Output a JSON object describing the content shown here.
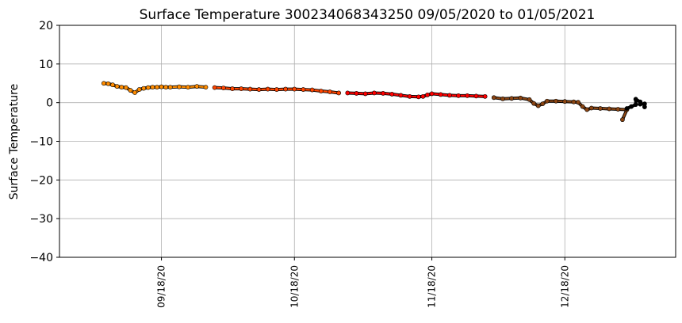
{
  "chart_data": {
    "type": "scatter",
    "title": "Surface Temperature 300234068343250  09/05/2020 to 01/05/2021",
    "xlabel": "",
    "ylabel": "Surface Temperature",
    "ylim": [
      -40,
      20
    ],
    "xlim": [
      "2020-08-26",
      "2021-01-12"
    ],
    "yticks": [
      20,
      10,
      0,
      -10,
      -20,
      -30,
      -40
    ],
    "ytick_labels": [
      "20",
      "10",
      "0",
      "−10",
      "−20",
      "−30",
      "−40"
    ],
    "xticks": [
      {
        "date": "2020-09-18",
        "label": "09/18/20"
      },
      {
        "date": "2020-10-18",
        "label": "10/18/20"
      },
      {
        "date": "2020-11-18",
        "label": "11/18/20"
      },
      {
        "date": "2020-12-18",
        "label": "12/18/20"
      }
    ],
    "grid": true,
    "series": [
      {
        "color": "#ff8c00",
        "points": [
          [
            "2020-09-05",
            5.0
          ],
          [
            "2020-09-06",
            4.9
          ],
          [
            "2020-09-07",
            4.6
          ],
          [
            "2020-09-08",
            4.2
          ],
          [
            "2020-09-09",
            4.0
          ],
          [
            "2020-09-10",
            3.9
          ],
          [
            "2020-09-11",
            3.2
          ],
          [
            "2020-09-12",
            2.6
          ],
          [
            "2020-09-13",
            3.4
          ],
          [
            "2020-09-14",
            3.7
          ],
          [
            "2020-09-15",
            3.9
          ],
          [
            "2020-09-16",
            4.0
          ],
          [
            "2020-09-17",
            4.0
          ],
          [
            "2020-09-18",
            4.1
          ],
          [
            "2020-09-19",
            4.0
          ],
          [
            "2020-09-20",
            4.0
          ],
          [
            "2020-09-22",
            4.1
          ],
          [
            "2020-09-24",
            4.0
          ],
          [
            "2020-09-26",
            4.2
          ],
          [
            "2020-09-28",
            4.0
          ]
        ]
      },
      {
        "color": "#ff4500",
        "points": [
          [
            "2020-09-30",
            3.9
          ],
          [
            "2020-10-02",
            3.8
          ],
          [
            "2020-10-04",
            3.6
          ],
          [
            "2020-10-06",
            3.6
          ],
          [
            "2020-10-08",
            3.5
          ],
          [
            "2020-10-10",
            3.4
          ],
          [
            "2020-10-12",
            3.5
          ],
          [
            "2020-10-14",
            3.4
          ],
          [
            "2020-10-16",
            3.5
          ],
          [
            "2020-10-18",
            3.5
          ],
          [
            "2020-10-20",
            3.4
          ],
          [
            "2020-10-22",
            3.3
          ],
          [
            "2020-10-24",
            3.0
          ],
          [
            "2020-10-26",
            2.8
          ],
          [
            "2020-10-28",
            2.5
          ]
        ]
      },
      {
        "color": "#ff0000",
        "points": [
          [
            "2020-10-30",
            2.5
          ],
          [
            "2020-11-01",
            2.4
          ],
          [
            "2020-11-03",
            2.3
          ],
          [
            "2020-11-05",
            2.5
          ],
          [
            "2020-11-07",
            2.4
          ],
          [
            "2020-11-09",
            2.2
          ],
          [
            "2020-11-11",
            1.9
          ],
          [
            "2020-11-13",
            1.6
          ],
          [
            "2020-11-15",
            1.5
          ],
          [
            "2020-11-16",
            1.6
          ],
          [
            "2020-11-17",
            2.0
          ],
          [
            "2020-11-18",
            2.3
          ],
          [
            "2020-11-20",
            2.1
          ],
          [
            "2020-11-22",
            1.9
          ],
          [
            "2020-11-24",
            1.8
          ],
          [
            "2020-11-26",
            1.8
          ],
          [
            "2020-11-28",
            1.7
          ],
          [
            "2020-11-30",
            1.6
          ]
        ]
      },
      {
        "color": "#8b4513",
        "points": [
          [
            "2020-12-02",
            1.3
          ],
          [
            "2020-12-04",
            1.0
          ],
          [
            "2020-12-06",
            1.1
          ],
          [
            "2020-12-08",
            1.2
          ],
          [
            "2020-12-10",
            0.8
          ],
          [
            "2020-12-11",
            -0.2
          ],
          [
            "2020-12-12",
            -0.8
          ],
          [
            "2020-12-13",
            -0.3
          ],
          [
            "2020-12-14",
            0.4
          ],
          [
            "2020-12-16",
            0.4
          ],
          [
            "2020-12-18",
            0.3
          ],
          [
            "2020-12-20",
            0.2
          ],
          [
            "2020-12-21",
            0.1
          ],
          [
            "2020-12-22",
            -1.0
          ],
          [
            "2020-12-23",
            -1.8
          ],
          [
            "2020-12-24",
            -1.4
          ],
          [
            "2020-12-26",
            -1.5
          ],
          [
            "2020-12-28",
            -1.6
          ],
          [
            "2020-12-30",
            -1.7
          ],
          [
            "2021-01-01",
            -1.8
          ],
          [
            "2020-12-31",
            -4.4
          ]
        ]
      },
      {
        "color": "#000000",
        "points": [
          [
            "2021-01-01",
            -1.5
          ],
          [
            "2021-01-02",
            -1.0
          ],
          [
            "2021-01-03",
            -0.5
          ],
          [
            "2021-01-03",
            0.9
          ],
          [
            "2021-01-04",
            0.2
          ],
          [
            "2021-01-04",
            -0.4
          ],
          [
            "2021-01-05",
            -0.3
          ],
          [
            "2021-01-05",
            -1.1
          ]
        ]
      }
    ]
  }
}
